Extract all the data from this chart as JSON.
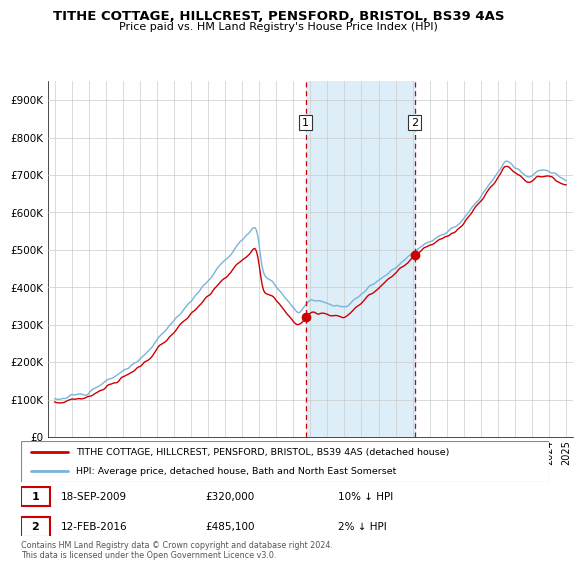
{
  "title": "TITHE COTTAGE, HILLCREST, PENSFORD, BRISTOL, BS39 4AS",
  "subtitle": "Price paid vs. HM Land Registry's House Price Index (HPI)",
  "legend_line1": "TITHE COTTAGE, HILLCREST, PENSFORD, BRISTOL, BS39 4AS (detached house)",
  "legend_line2": "HPI: Average price, detached house, Bath and North East Somerset",
  "transaction1_date": "18-SEP-2009",
  "transaction1_price": "£320,000",
  "transaction1_pct": "10% ↓ HPI",
  "transaction1_x": 2009.72,
  "transaction1_y": 320000,
  "transaction2_date": "12-FEB-2016",
  "transaction2_price": "£485,100",
  "transaction2_pct": "2% ↓ HPI",
  "transaction2_x": 2016.12,
  "transaction2_y": 485100,
  "footer": "Contains HM Land Registry data © Crown copyright and database right 2024.\nThis data is licensed under the Open Government Licence v3.0.",
  "hpi_color": "#7ab4d8",
  "price_color": "#cc0000",
  "shade_color": "#ddeef8",
  "vline_color": "#cc0000",
  "background_color": "#ffffff",
  "grid_color": "#cccccc",
  "ylim": [
    0,
    950000
  ],
  "xlim_start": 1994.6,
  "xlim_end": 2025.4
}
